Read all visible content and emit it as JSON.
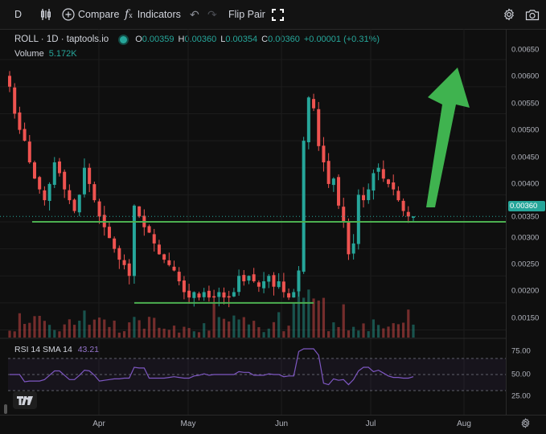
{
  "toolbar": {
    "interval": "D",
    "compare": "Compare",
    "indicators": "Indicators",
    "flip_pair": "Flip Pair"
  },
  "legend": {
    "symbol": "ROLL · 1D · taptools.io",
    "open_label": "O",
    "open": "0.00359",
    "high_label": "H",
    "high": "0.00360",
    "low_label": "L",
    "low": "0.00354",
    "close_label": "C",
    "close": "0.00360",
    "change": "+0.00001 (+0.31%)",
    "volume_label": "Volume",
    "volume": "5.172K"
  },
  "rsi": {
    "label": "RSI 14 SMA 14",
    "value": "43.21"
  },
  "price_axis": {
    "ticks": [
      "0.00650",
      "0.00600",
      "0.00550",
      "0.00500",
      "0.00450",
      "0.00400",
      "0.00350",
      "0.00300",
      "0.00250",
      "0.00200",
      "0.00150"
    ],
    "current": "0.00360"
  },
  "rsi_axis": {
    "ticks": [
      "75.00",
      "50.00",
      "25.00"
    ]
  },
  "date_axis": {
    "labels": [
      "Apr",
      "May",
      "Jun",
      "Jul",
      "Aug"
    ]
  },
  "colors": {
    "up": "#26a69a",
    "down": "#ef5350",
    "line": "#4caf50",
    "arrow": "#3fb34f",
    "rsi": "#7e57c2"
  },
  "chart_data": {
    "type": "candlestick",
    "price_range": [
      0.0013,
      0.0068
    ],
    "rsi_range": [
      20,
      85
    ],
    "close_series": [
      0.006,
      0.0055,
      0.0052,
      0.005,
      0.0046,
      0.0043,
      0.0041,
      0.0039,
      0.0042,
      0.0046,
      0.0044,
      0.0041,
      0.0039,
      0.0037,
      0.004,
      0.0045,
      0.0042,
      0.0039,
      0.0036,
      0.0034,
      0.0032,
      0.003,
      0.0028,
      0.0027,
      0.0025,
      0.0038,
      0.0036,
      0.0034,
      0.0033,
      0.0031,
      0.0029,
      0.0028,
      0.0027,
      0.0026,
      0.0024,
      0.0022,
      0.0021,
      0.0022,
      0.0021,
      0.0022,
      0.0021,
      0.0021,
      0.0022,
      0.0021,
      0.0021,
      0.0022,
      0.0025,
      0.0024,
      0.0025,
      0.0024,
      0.0023,
      0.0024,
      0.0025,
      0.0023,
      0.0024,
      0.0022,
      0.0021,
      0.0022,
      0.0026,
      0.005,
      0.0058,
      0.0056,
      0.0049,
      0.0046,
      0.0042,
      0.0043,
      0.0038,
      0.0035,
      0.0029,
      0.0031,
      0.004,
      0.0039,
      0.0041,
      0.0044,
      0.0045,
      0.0043,
      0.0042,
      0.0041,
      0.0039,
      0.0037,
      0.0036,
      0.0036
    ],
    "support_line": 0.0035,
    "bottom_line": 0.002
  }
}
